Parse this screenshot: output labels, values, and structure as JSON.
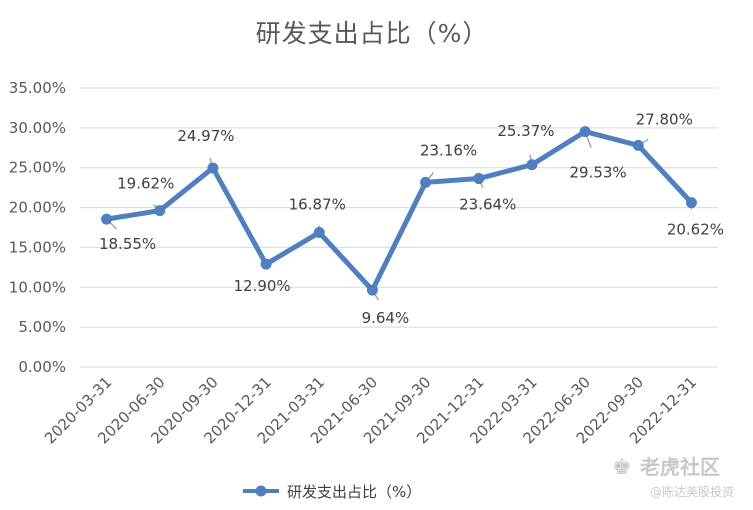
{
  "chart_data": {
    "type": "line",
    "title": "研发支出占比（%）",
    "categories": [
      "2020-03-31",
      "2020-06-30",
      "2020-09-30",
      "2020-12-31",
      "2021-03-31",
      "2021-06-30",
      "2021-09-30",
      "2021-12-31",
      "2022-03-31",
      "2022-06-30",
      "2022-09-30",
      "2022-12-31"
    ],
    "series": [
      {
        "name": "研发支出占比（%）",
        "values": [
          18.55,
          19.62,
          24.97,
          12.9,
          16.87,
          9.64,
          23.16,
          23.64,
          25.37,
          29.53,
          27.8,
          20.62
        ],
        "data_labels": [
          "18.55%",
          "19.62%",
          "24.97%",
          "12.90%",
          "16.87%",
          "9.64%",
          "23.16%",
          "23.64%",
          "25.37%",
          "29.53%",
          "27.80%",
          "20.62%"
        ],
        "color": "#4f7fbe"
      }
    ],
    "y_ticks": [
      "0.00%",
      "5.00%",
      "10.00%",
      "15.00%",
      "20.00%",
      "25.00%",
      "30.00%",
      "35.00%"
    ],
    "ylim": [
      0,
      35
    ],
    "xlabel": "",
    "ylabel": "",
    "grid": true,
    "legend_position": "bottom"
  },
  "watermark": {
    "brand": "老虎社区",
    "author": "@陈达美股投资"
  },
  "colors": {
    "series": "#4f7fbe",
    "grid": "#d9d9d9",
    "text": "#595959",
    "leader": "#a6a6a6"
  }
}
